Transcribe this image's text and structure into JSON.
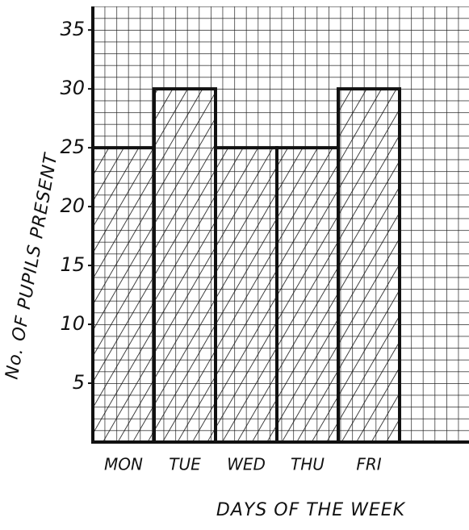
{
  "chart_data": {
    "type": "bar",
    "x_label": "DAYS OF THE WEEK",
    "y_label": "No. OF PUPILS PRESENT",
    "categories": [
      "MON",
      "TUE",
      "WED",
      "THU",
      "FRI"
    ],
    "values": [
      25,
      30,
      25,
      25,
      30
    ],
    "color": "#111111",
    "ylim": [
      0,
      37
    ],
    "yticks": [
      5,
      10,
      15,
      20,
      25,
      30,
      35
    ],
    "grid": true
  }
}
